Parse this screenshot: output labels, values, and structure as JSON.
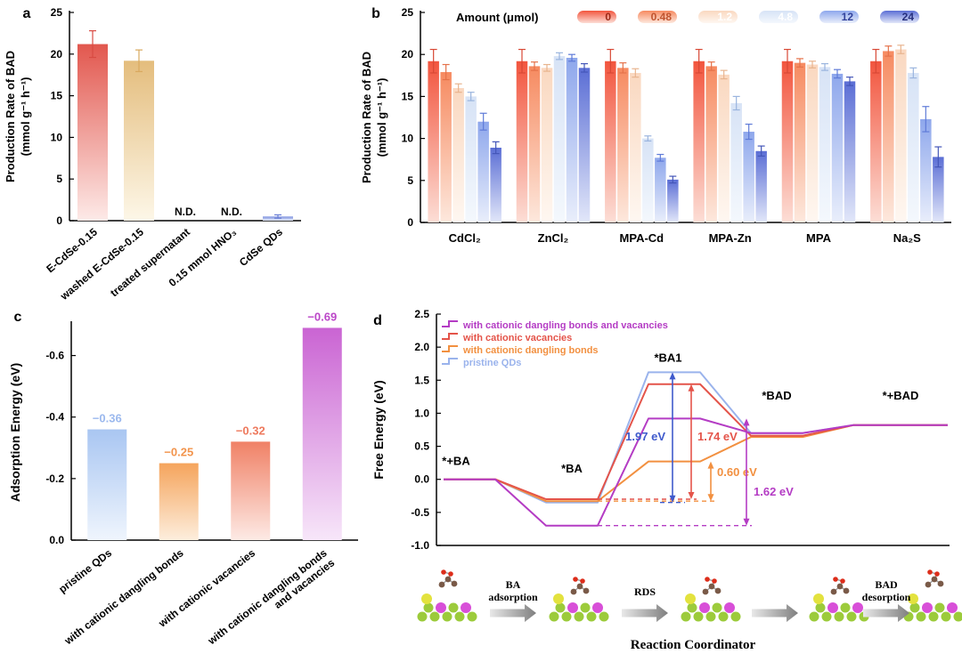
{
  "figure": {
    "background": "#ffffff"
  },
  "chart_data": [
    {
      "id": "a",
      "type": "bar",
      "panel_label": "a",
      "ylabel_line1": "Production Rate of BAD",
      "ylabel_line2": "(mmol g⁻¹ h⁻¹)",
      "ylim": [
        0,
        25
      ],
      "yticks": [
        0,
        5,
        10,
        15,
        20,
        25
      ],
      "categories": [
        "E-CdSe-0.15",
        "washed E-CdSe-0.15",
        "treated supernatant",
        "0.15 mmol HNO₃",
        "CdSe QDs"
      ],
      "values": [
        21.2,
        19.2,
        null,
        null,
        0.5
      ],
      "errors": [
        1.6,
        1.3,
        null,
        null,
        0.2
      ],
      "nd_label": "N.D.",
      "bar_gradients": [
        [
          "#e2574e",
          "#fdeae8"
        ],
        [
          "#e4bd7d",
          "#fdf7e8"
        ],
        null,
        null,
        [
          "#7b8fdf",
          "#eaeefb"
        ]
      ],
      "error_colors": [
        "#d84b42",
        "#d9a95f",
        null,
        null,
        "#6a7fd6"
      ]
    },
    {
      "id": "b",
      "type": "grouped-bar",
      "panel_label": "b",
      "legend_title": "Amount (μmol)",
      "ylabel_line1": "Production Rate of BAD",
      "ylabel_line2": "(mmol g⁻¹ h⁻¹)",
      "ylim": [
        0,
        25
      ],
      "yticks": [
        0,
        5,
        10,
        15,
        20,
        25
      ],
      "categories": [
        "CdCl₂",
        "ZnCl₂",
        "MPA-Cd",
        "MPA-Zn",
        "MPA",
        "Na₂S"
      ],
      "series": [
        {
          "name": "0",
          "color_top": "#f2553e",
          "color_bottom": "#fcded6",
          "label_color": "#9c2a18",
          "error_color": "#d84835",
          "values": [
            19.2,
            19.2,
            19.2,
            19.2,
            19.2,
            19.2
          ],
          "errors": [
            1.4,
            1.4,
            1.4,
            1.4,
            1.4,
            1.4
          ]
        },
        {
          "name": "0.48",
          "color_top": "#f68a60",
          "color_bottom": "#fde8dd",
          "label_color": "#c05530",
          "error_color": "#e5724a",
          "values": [
            17.9,
            18.6,
            18.4,
            18.6,
            19.0,
            20.4
          ],
          "errors": [
            0.9,
            0.5,
            0.6,
            0.5,
            0.5,
            0.6
          ]
        },
        {
          "name": "1.2",
          "color_top": "#fad8c0",
          "color_bottom": "#fef7f1",
          "label_color": "#ffffff",
          "error_color": "#e8b48e",
          "values": [
            16.0,
            18.4,
            17.8,
            17.6,
            18.8,
            20.6
          ],
          "errors": [
            0.5,
            0.4,
            0.5,
            0.5,
            0.4,
            0.5
          ]
        },
        {
          "name": "4.8",
          "color_top": "#d7e3f6",
          "color_bottom": "#f4f8fd",
          "label_color": "#ffffff",
          "error_color": "#9ab4de",
          "values": [
            15.0,
            19.8,
            10.0,
            14.2,
            18.5,
            17.8
          ],
          "errors": [
            0.5,
            0.4,
            0.3,
            0.8,
            0.4,
            0.6
          ]
        },
        {
          "name": "12",
          "color_top": "#8ea7ec",
          "color_bottom": "#e9eefb",
          "label_color": "#33439c",
          "error_color": "#5f7bd8",
          "values": [
            12.0,
            19.6,
            7.7,
            10.8,
            17.7,
            12.3
          ],
          "errors": [
            1.0,
            0.4,
            0.4,
            0.9,
            0.5,
            1.5
          ]
        },
        {
          "name": "24",
          "color_top": "#5b6ed5",
          "color_bottom": "#e2e7f9",
          "label_color": "#27307e",
          "error_color": "#4456b8",
          "values": [
            8.9,
            18.4,
            5.1,
            8.5,
            16.8,
            7.8
          ],
          "errors": [
            0.7,
            0.5,
            0.4,
            0.6,
            0.5,
            1.2
          ]
        }
      ]
    },
    {
      "id": "c",
      "type": "bar",
      "panel_label": "c",
      "ylabel": "Adsorption Energy (eV)",
      "ylim": [
        0,
        -0.7
      ],
      "yticks": [
        "0.0",
        "-0.2",
        "-0.4",
        "-0.6"
      ],
      "categories": [
        "pristine QDs",
        "with cationic dangling bonds",
        "with cationic vacancies",
        "with cationic dangling bonds\nand vacancies"
      ],
      "values": [
        -0.36,
        -0.25,
        -0.32,
        -0.69
      ],
      "value_labels": [
        "−0.36",
        "−0.25",
        "−0.32",
        "−0.69"
      ],
      "bar_gradients": [
        [
          "#a9c6f2",
          "#eff5fd"
        ],
        [
          "#f5a45c",
          "#fdeedd"
        ],
        [
          "#f08166",
          "#fdeae5"
        ],
        [
          "#ca64d3",
          "#f7e6f9"
        ]
      ],
      "label_colors": [
        "#9cb9ee",
        "#f2944c",
        "#ee7a5e",
        "#bb46c8"
      ]
    },
    {
      "id": "d",
      "type": "line",
      "panel_label": "d",
      "ylabel": "Free Energy (eV)",
      "xlabel": "Reaction Coordinator",
      "ylim": [
        -1.0,
        2.5
      ],
      "yticks": [
        "-1.0",
        "-0.5",
        "0.0",
        "0.5",
        "1.0",
        "1.5",
        "2.0",
        "2.5"
      ],
      "state_labels": [
        "*+BA",
        "*BA",
        "*BA1",
        "*BAD",
        "*+BAD"
      ],
      "series": [
        {
          "name": "with cationic dangling bonds and vacancies",
          "color": "#b43cc4",
          "energies": [
            0,
            -0.7,
            0.92,
            0.7,
            0.82
          ]
        },
        {
          "name": "with cationic vacancies",
          "color": "#e4544a",
          "energies": [
            0,
            -0.3,
            1.44,
            0.66,
            0.82
          ]
        },
        {
          "name": "with cationic dangling bonds",
          "color": "#f29040",
          "energies": [
            0,
            -0.33,
            0.27,
            0.64,
            0.82
          ]
        },
        {
          "name": "pristine QDs",
          "color": "#9ab3ec",
          "energies": [
            0,
            -0.35,
            1.62,
            0.7,
            0.82
          ]
        }
      ],
      "barriers": [
        {
          "label": "1.97 eV",
          "color": "#3f5acc",
          "series": "pristine QDs",
          "from": -0.35,
          "to": 1.62
        },
        {
          "label": "1.74 eV",
          "color": "#e4544a",
          "series": "with cationic vacancies",
          "from": -0.3,
          "to": 1.44
        },
        {
          "label": "0.60 eV",
          "color": "#f29040",
          "series": "with cationic dangling bonds",
          "from": -0.33,
          "to": 0.27
        },
        {
          "label": "1.62 eV",
          "color": "#b43cc4",
          "series": "with cationic dangling bonds and vacancies",
          "from": -0.7,
          "to": 0.92
        }
      ],
      "mechanism_steps": [
        "BA adsorption",
        "RDS",
        "",
        "BAD desorption"
      ]
    }
  ]
}
